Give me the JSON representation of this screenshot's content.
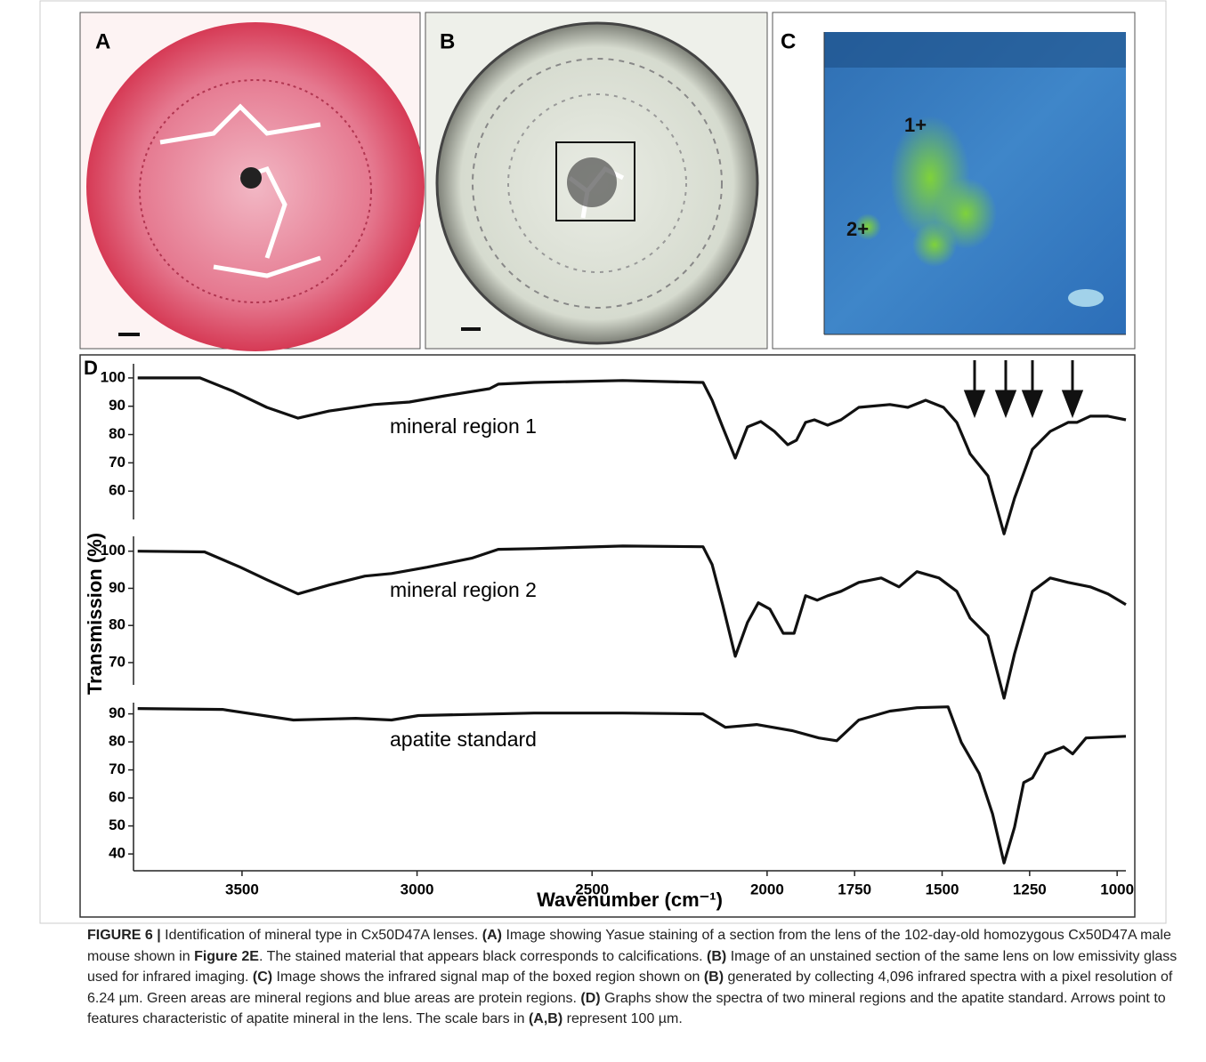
{
  "panel_labels": [
    "A",
    "B",
    "C",
    "D"
  ],
  "map_labels": [
    "1+",
    "2+"
  ],
  "chart_data": [
    {
      "type": "line",
      "annotation": "mineral region 1",
      "color": "#111111",
      "xlim": [
        3810,
        975
      ],
      "ylim": [
        50,
        105
      ],
      "yticks": [
        60,
        70,
        80,
        90,
        100
      ],
      "x": [
        3798,
        3620,
        3525,
        3429,
        3340,
        3251,
        3124,
        3022,
        2920,
        2793,
        2768,
        2666,
        2412,
        2183,
        2157,
        2127,
        2091,
        2056,
        2018,
        1979,
        1941,
        1916,
        1890,
        1865,
        1827,
        1789,
        1738,
        1649,
        1598,
        1547,
        1496,
        1458,
        1420,
        1369,
        1323,
        1293,
        1242,
        1191,
        1140,
        1115,
        1077,
        1026,
        975
      ],
      "values": [
        100,
        100,
        95.3,
        89.6,
        85.8,
        88.3,
        90.6,
        91.5,
        93.7,
        96.2,
        97.8,
        98.4,
        99.1,
        98.4,
        92.1,
        82.7,
        71.7,
        82.7,
        84.6,
        81.1,
        76.4,
        78,
        84.3,
        85.2,
        83.3,
        85.2,
        89.6,
        90.6,
        89.6,
        92.1,
        89.6,
        84.3,
        73.2,
        65.4,
        44.9,
        57.5,
        74.8,
        81.1,
        84.3,
        84.3,
        86.5,
        86.5,
        85.2
      ]
    },
    {
      "type": "line",
      "annotation": "mineral region 2",
      "color": "#111111",
      "ylabel": "Transmission (%)",
      "xlim": [
        3810,
        975
      ],
      "ylim": [
        64,
        104
      ],
      "yticks": [
        70,
        80,
        90,
        100
      ],
      "x": [
        3798,
        3607,
        3505,
        3429,
        3340,
        3251,
        3149,
        3073,
        2971,
        2844,
        2768,
        2666,
        2412,
        2183,
        2157,
        2127,
        2091,
        2056,
        2025,
        1992,
        1954,
        1923,
        1890,
        1857,
        1827,
        1789,
        1738,
        1674,
        1623,
        1572,
        1509,
        1458,
        1420,
        1369,
        1323,
        1293,
        1242,
        1191,
        1140,
        1077,
        1026,
        975
      ],
      "values": [
        100,
        99.8,
        95.7,
        92.3,
        88.5,
        90.9,
        93.3,
        94,
        95.7,
        98.1,
        100.5,
        100.7,
        101.4,
        101.2,
        96.4,
        85.6,
        71.7,
        80.8,
        86.1,
        84.4,
        77.9,
        77.9,
        88,
        86.8,
        88,
        89.2,
        91.6,
        92.8,
        90.4,
        94.5,
        92.8,
        89.2,
        82,
        77.2,
        60.4,
        72.4,
        89.2,
        92.8,
        91.6,
        90.4,
        88.5,
        85.6
      ]
    },
    {
      "type": "line",
      "annotation": "apatite standard",
      "color": "#111111",
      "xlabel": "Wavenumber (cm⁻¹)",
      "xlim": [
        3810,
        975
      ],
      "ylim": [
        34,
        94
      ],
      "yticks": [
        40,
        50,
        60,
        70,
        80,
        90
      ],
      "xticks": [
        3500,
        3000,
        2500,
        2000,
        1750,
        1500,
        1250,
        1000
      ],
      "x": [
        3798,
        3556,
        3353,
        3175,
        3073,
        2996,
        2666,
        2412,
        2183,
        2119,
        2030,
        1928,
        1852,
        1801,
        1738,
        1649,
        1572,
        1483,
        1445,
        1394,
        1356,
        1323,
        1293,
        1267,
        1242,
        1204,
        1153,
        1127,
        1089,
        975
      ],
      "values": [
        91.9,
        91.6,
        87.8,
        88.4,
        87.8,
        89.4,
        90.3,
        90.3,
        90,
        85.2,
        86.2,
        84,
        81.4,
        80.4,
        87.8,
        91,
        92.2,
        92.5,
        79.8,
        68.7,
        54.3,
        36.8,
        49.6,
        65.5,
        67.1,
        75.7,
        78.2,
        75.7,
        81.4,
        82
      ]
    }
  ],
  "caption": [
    {
      "text": "FIGURE 6 | ",
      "bold": true
    },
    {
      "text": "Identification of mineral type in Cx50D47A lenses. "
    },
    {
      "text": "(A)",
      "bold": true
    },
    {
      "text": " Image showing Yasue staining of a section from the lens of the 102-day-old homozygous Cx50D47A male mouse shown in "
    },
    {
      "text": "Figure 2E",
      "bold": true
    },
    {
      "text": ". The stained material that appears black corresponds to calcifications. "
    },
    {
      "text": "(B)",
      "bold": true
    },
    {
      "text": " Image of an unstained section of the same lens on low emissivity glass used for infrared imaging. "
    },
    {
      "text": "(C)",
      "bold": true
    },
    {
      "text": " Image shows the infrared signal map of the boxed region shown on "
    },
    {
      "text": "(B)",
      "bold": true
    },
    {
      "text": " generated by collecting 4,096 infrared spectra with a pixel resolution of 6.24 µm. Green areas are mineral regions and blue areas are protein regions. "
    },
    {
      "text": "(D)",
      "bold": true
    },
    {
      "text": " Graphs show the spectra of two mineral regions and the apatite standard. Arrows point to features characteristic of apatite mineral in the lens. The scale bars in "
    },
    {
      "text": "(A,B)",
      "bold": true
    },
    {
      "text": " represent 100 µm."
    }
  ]
}
